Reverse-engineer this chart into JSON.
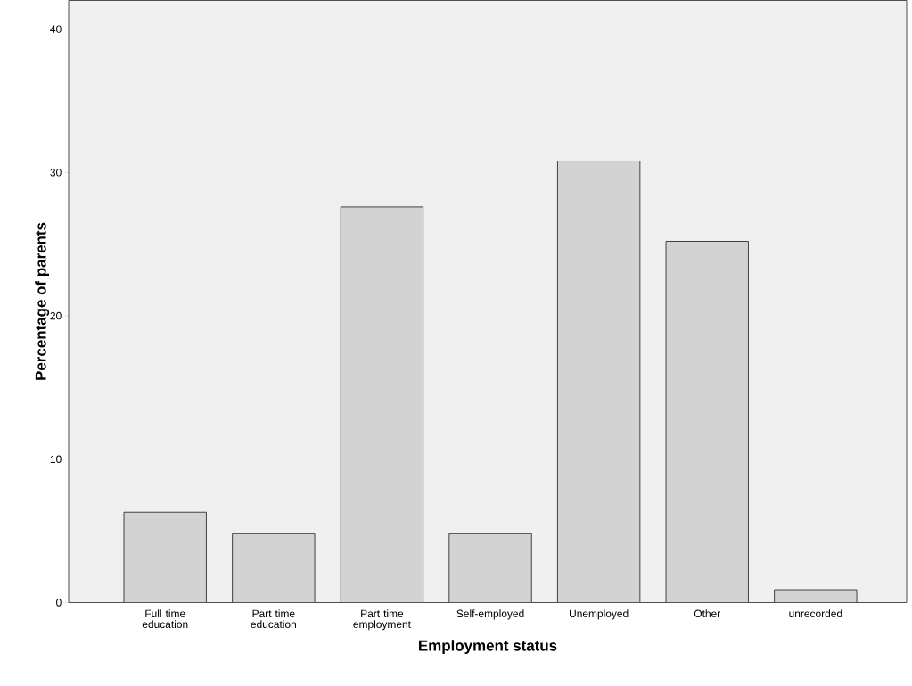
{
  "chart_data": {
    "type": "bar",
    "xlabel": "Employment status",
    "ylabel": "Percentage of parents",
    "categories": [
      "Full time education",
      "Part time education",
      "Part time employment",
      "Self-employed",
      "Unemployed",
      "Other",
      "unrecorded"
    ],
    "values": [
      6.3,
      4.8,
      27.6,
      4.8,
      30.8,
      25.2,
      0.9
    ],
    "color": "#d3d3d3",
    "ylim": [
      0,
      42
    ],
    "yticks": [
      0,
      10,
      20,
      30,
      40
    ],
    "grid": false
  }
}
